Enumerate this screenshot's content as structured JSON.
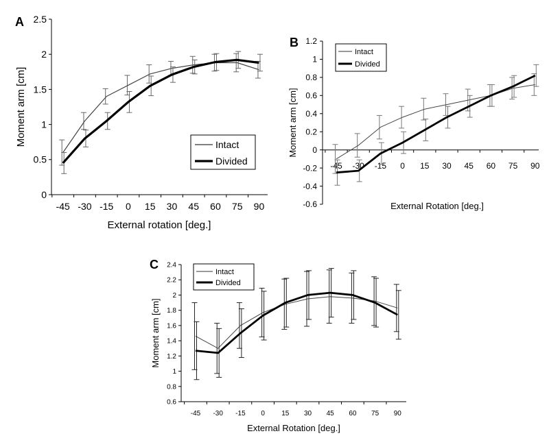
{
  "chart_data": [
    {
      "panel": "A",
      "type": "line",
      "xlabel": "External rotation [deg.]",
      "ylabel": "Moment arm [cm]",
      "categories": [
        "-45",
        "-30",
        "-15",
        "0",
        "15",
        "30",
        "45",
        "60",
        "75",
        "90"
      ],
      "y_ticks": [
        "0",
        "0.5",
        "1",
        "1.5",
        "2",
        "2.5"
      ],
      "ylim": [
        0,
        2.5
      ],
      "legend": [
        "Intact",
        "Divided"
      ],
      "series": [
        {
          "name": "Intact",
          "style": "thin",
          "values": [
            0.6,
            1.05,
            1.4,
            1.56,
            1.72,
            1.8,
            1.85,
            1.88,
            1.88,
            1.78
          ],
          "errors": [
            0.18,
            0.12,
            0.11,
            0.14,
            0.13,
            0.1,
            0.12,
            0.12,
            0.13,
            0.12
          ]
        },
        {
          "name": "Divided",
          "style": "thick",
          "values": [
            0.45,
            0.8,
            1.05,
            1.32,
            1.55,
            1.71,
            1.82,
            1.89,
            1.92,
            1.88
          ],
          "errors": [
            0.15,
            0.12,
            0.12,
            0.15,
            0.14,
            0.11,
            0.1,
            0.12,
            0.12,
            0.12
          ]
        }
      ]
    },
    {
      "panel": "B",
      "type": "line",
      "xlabel": "External Rotation [deg.]",
      "ylabel": "Moment arm [cm]",
      "categories": [
        "-45",
        "-30",
        "-15",
        "0",
        "15",
        "30",
        "45",
        "60",
        "75",
        "90"
      ],
      "y_ticks": [
        "-0.6",
        "-0.4",
        "-0.2",
        "0",
        "0.2",
        "0.4",
        "0.6",
        "0.8",
        "1",
        "1.2"
      ],
      "ylim": [
        -0.6,
        1.2
      ],
      "legend": [
        "Intact",
        "Divided"
      ],
      "series": [
        {
          "name": "Intact",
          "style": "thin",
          "values": [
            -0.1,
            0.05,
            0.25,
            0.36,
            0.45,
            0.5,
            0.55,
            0.6,
            0.68,
            0.72
          ],
          "errors": [
            0.16,
            0.13,
            0.13,
            0.12,
            0.12,
            0.12,
            0.12,
            0.12,
            0.12,
            0.12
          ]
        },
        {
          "name": "Divided",
          "style": "thick",
          "values": [
            -0.25,
            -0.23,
            -0.04,
            0.08,
            0.22,
            0.36,
            0.48,
            0.6,
            0.7,
            0.82
          ],
          "errors": [
            0.14,
            0.12,
            0.12,
            0.12,
            0.12,
            0.12,
            0.12,
            0.12,
            0.12,
            0.12
          ]
        }
      ]
    },
    {
      "panel": "C",
      "type": "line",
      "xlabel": "External Rotation [deg.]",
      "ylabel": "Moment arm [cm]",
      "categories": [
        "-45",
        "-30",
        "-15",
        "0",
        "15",
        "30",
        "45",
        "60",
        "75",
        "90"
      ],
      "y_ticks": [
        "0.6",
        "0.8",
        "1",
        "1.2",
        "1.4",
        "1.6",
        "1.8",
        "2",
        "2.2",
        "2.4"
      ],
      "ylim": [
        0.6,
        2.4
      ],
      "legend": [
        "Intact",
        "Divided"
      ],
      "series": [
        {
          "name": "Intact",
          "style": "thin",
          "values": [
            1.46,
            1.3,
            1.6,
            1.77,
            1.88,
            1.95,
            1.98,
            1.96,
            1.92,
            1.83
          ],
          "errors": [
            0.44,
            0.33,
            0.3,
            0.32,
            0.33,
            0.36,
            0.35,
            0.33,
            0.32,
            0.31
          ]
        },
        {
          "name": "Divided",
          "style": "thick",
          "values": [
            1.27,
            1.24,
            1.5,
            1.73,
            1.9,
            2.0,
            2.03,
            2.0,
            1.9,
            1.74
          ],
          "errors": [
            0.38,
            0.32,
            0.32,
            0.32,
            0.32,
            0.32,
            0.32,
            0.32,
            0.32,
            0.32
          ]
        }
      ]
    }
  ]
}
